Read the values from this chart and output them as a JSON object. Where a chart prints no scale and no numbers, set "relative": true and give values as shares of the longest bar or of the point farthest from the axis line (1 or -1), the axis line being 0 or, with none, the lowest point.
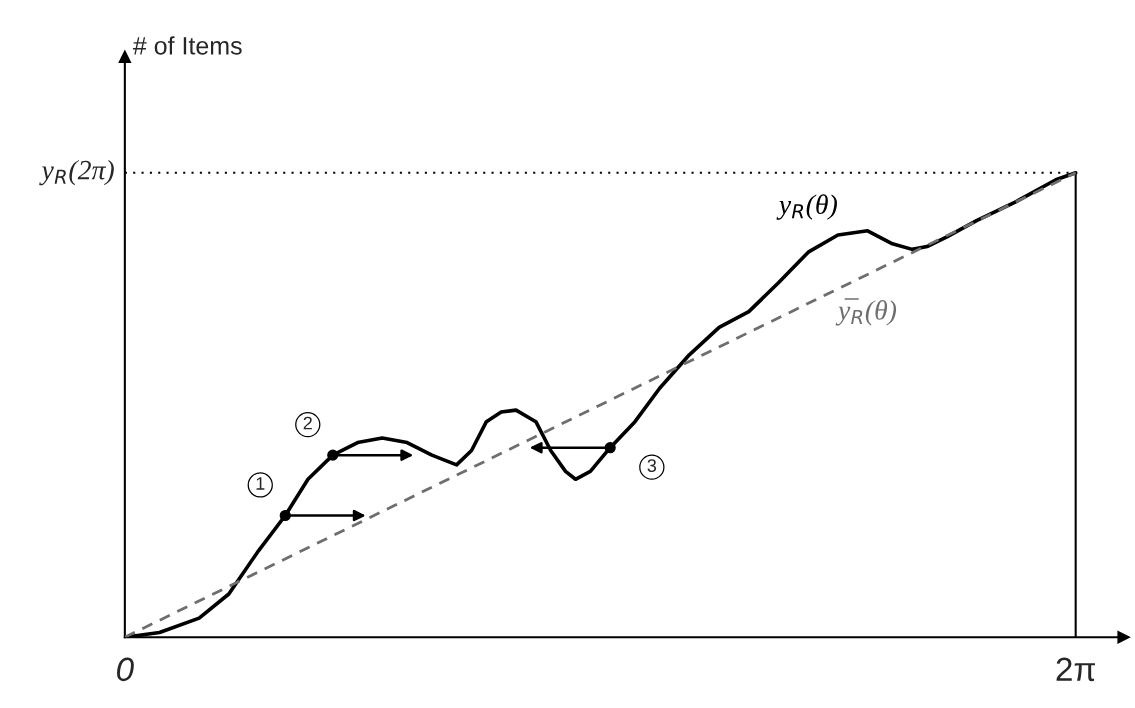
{
  "chart_data": {
    "type": "line",
    "relative": true,
    "ylabel": "# of Items",
    "tick_labels": "x",
    "grid": false,
    "legend": false,
    "xlim": [
      0,
      6.6
    ],
    "xticks": [
      {
        "value": 0,
        "label": "0"
      },
      {
        "value": 6.283,
        "label": "2π"
      }
    ],
    "series": [
      {
        "name": "y$_{R}$(θ)",
        "color": "#000000",
        "line_style": "solid",
        "marker": "none",
        "x": [
          0,
          0.229,
          0.491,
          0.687,
          0.883,
          1.06,
          1.21,
          1.374,
          1.538,
          1.701,
          1.865,
          2.029,
          2.192,
          2.291,
          2.389,
          2.487,
          2.585,
          2.716,
          2.814,
          2.912,
          2.978,
          3.076,
          3.207,
          3.371,
          3.534,
          3.73,
          3.927,
          4.123,
          4.319,
          4.516,
          4.712,
          4.908,
          5.072,
          5.203,
          5.301,
          5.432,
          5.628,
          5.89,
          6.152,
          6.283
        ],
        "values": [
          0,
          0.01,
          0.041,
          0.093,
          0.186,
          0.262,
          0.34,
          0.392,
          0.419,
          0.429,
          0.419,
          0.392,
          0.371,
          0.402,
          0.464,
          0.485,
          0.489,
          0.464,
          0.402,
          0.357,
          0.34,
          0.357,
          0.408,
          0.464,
          0.536,
          0.608,
          0.667,
          0.701,
          0.763,
          0.829,
          0.866,
          0.875,
          0.847,
          0.835,
          0.841,
          0.862,
          0.897,
          0.938,
          0.985,
          1.0
        ]
      },
      {
        "name": "y̅$_{R}$(θ)",
        "color": "#6e6e6e",
        "line_style": "dashed",
        "marker": "none",
        "x": [
          0,
          6.283
        ],
        "values": [
          0,
          1
        ]
      },
      {
        "type": "scatter",
        "color": "#000000",
        "marker": "circle",
        "x": [
          1.06,
          1.374,
          3.207
        ],
        "values": [
          0.262,
          0.392,
          0.408
        ]
      }
    ],
    "ref_lines": [
      {
        "axis": "y",
        "value": 1,
        "label": "y$_{R}$(2π)",
        "line_style": "dotted",
        "color": "#000000"
      },
      {
        "axis": "x",
        "value": 6.283,
        "line_style": "solid",
        "color": "#000000"
      }
    ],
    "annotations": [
      {
        "text": "1",
        "x": 1.06,
        "y": 0.262
      },
      {
        "text": "2",
        "x": 1.374,
        "y": 0.392
      },
      {
        "text": "3",
        "x": 3.207,
        "y": 0.408
      }
    ]
  }
}
